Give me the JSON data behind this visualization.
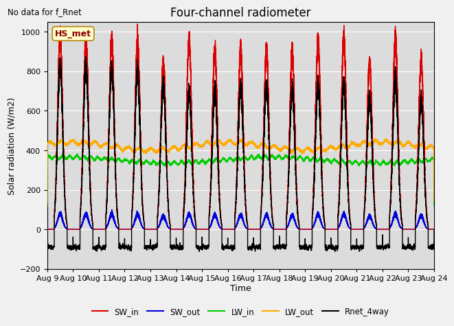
{
  "title": "Four-channel radiometer",
  "top_left_text": "No data for f_Rnet",
  "station_label": "HS_met",
  "ylabel": "Solar radiation (W/m2)",
  "xlabel": "Time",
  "ylim": [
    -200,
    1050
  ],
  "yticks": [
    -200,
    0,
    200,
    400,
    600,
    800,
    1000
  ],
  "xtick_labels": [
    "Aug 9",
    "Aug 10",
    "Aug 11",
    "Aug 12",
    "Aug 13",
    "Aug 14",
    "Aug 15",
    "Aug 16",
    "Aug 17",
    "Aug 18",
    "Aug 19",
    "Aug 20",
    "Aug 21",
    "Aug 22",
    "Aug 23",
    "Aug 24"
  ],
  "num_days": 15,
  "bg_color": "#dcdcdc",
  "fig_color": "#f0f0f0",
  "legend_entries": [
    {
      "label": "SW_in",
      "color": "#dd0000",
      "lw": 1.0
    },
    {
      "label": "SW_out",
      "color": "#0000dd",
      "lw": 1.0
    },
    {
      "label": "LW_in",
      "color": "#00cc00",
      "lw": 1.0
    },
    {
      "label": "LW_out",
      "color": "#ffaa00",
      "lw": 1.0
    },
    {
      "label": "Rnet_4way",
      "color": "#000000",
      "lw": 1.0
    }
  ],
  "SW_in_peaks": [
    970,
    960,
    950,
    940,
    835,
    960,
    900,
    900,
    900,
    900,
    940,
    960,
    840,
    960,
    850
  ],
  "Rnet_peaks": [
    830,
    820,
    820,
    800,
    730,
    700,
    700,
    720,
    730,
    700,
    730,
    740,
    660,
    760,
    650
  ],
  "LW_in_base": 350,
  "LW_out_base": 420,
  "title_fontsize": 12,
  "label_fontsize": 9,
  "tick_fontsize": 8
}
